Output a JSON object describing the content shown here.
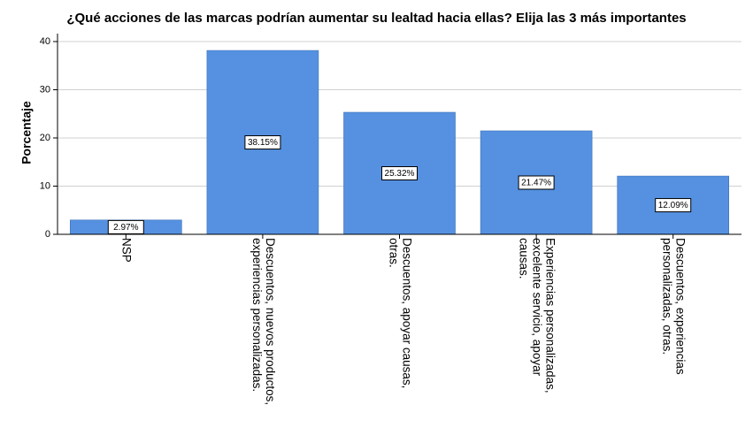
{
  "chart_data": {
    "type": "bar",
    "title": "¿Qué acciones de las marcas podrían aumentar su lealtad hacia ellas? Elija las 3 más importantes",
    "ylabel": "Porcentaje",
    "xlabel": "",
    "ylim": [
      0,
      40
    ],
    "yticks": [
      0,
      10,
      20,
      30,
      40
    ],
    "grid": true,
    "categories": [
      [
        "NSP"
      ],
      [
        "Descuentos, nuevos productos,",
        "experiencias personalizadas."
      ],
      [
        "Descuentos, apoyar causas,",
        "otras."
      ],
      [
        "Experiencias personalizadas,",
        "excelente servicio, apoyar",
        "causas."
      ],
      [
        "Descuentos, experiencias",
        "personalizadas, otras."
      ]
    ],
    "values": [
      2.97,
      38.15,
      25.32,
      21.47,
      12.09
    ],
    "data_labels": [
      "2.97%",
      "38.15%",
      "25.32%",
      "21.47%",
      "12.09%"
    ],
    "bar_color": "#5591e0"
  }
}
